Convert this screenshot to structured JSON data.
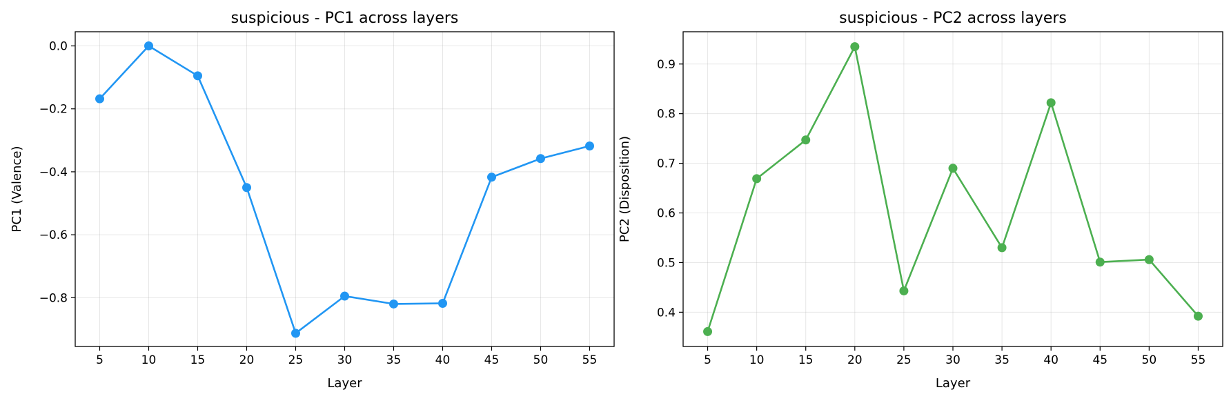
{
  "chart_data": [
    {
      "type": "line",
      "title": "suspicious - PC1 across layers",
      "xlabel": "Layer",
      "ylabel": "PC1 (Valence)",
      "x": [
        5,
        10,
        15,
        20,
        25,
        30,
        35,
        40,
        45,
        50,
        55
      ],
      "x_ticks": [
        5,
        10,
        15,
        20,
        25,
        30,
        35,
        40,
        45,
        50,
        55
      ],
      "x_tick_labels": [
        "5",
        "10",
        "15",
        "20",
        "25",
        "30",
        "35",
        "40",
        "45",
        "50",
        "55"
      ],
      "xlim": [
        2.5,
        57.5
      ],
      "ylim": [
        -0.955,
        0.045
      ],
      "y_ticks": [
        0.0,
        -0.2,
        -0.4,
        -0.6,
        -0.8
      ],
      "y_tick_labels": [
        "0.0",
        "−0.2",
        "−0.4",
        "−0.6",
        "−0.8"
      ],
      "grid": true,
      "series": [
        {
          "color": "#2196F3",
          "values": [
            -0.168,
            0.0,
            -0.095,
            -0.45,
            -0.913,
            -0.795,
            -0.82,
            -0.818,
            -0.417,
            -0.358,
            -0.318
          ]
        }
      ]
    },
    {
      "type": "line",
      "title": "suspicious - PC2 across layers",
      "xlabel": "Layer",
      "ylabel": "PC2 (Disposition)",
      "x": [
        5,
        10,
        15,
        20,
        25,
        30,
        35,
        40,
        45,
        50,
        55
      ],
      "x_ticks": [
        5,
        10,
        15,
        20,
        25,
        30,
        35,
        40,
        45,
        50,
        55
      ],
      "x_tick_labels": [
        "5",
        "10",
        "15",
        "20",
        "25",
        "30",
        "35",
        "40",
        "45",
        "50",
        "55"
      ],
      "xlim": [
        2.5,
        57.5
      ],
      "ylim": [
        0.331,
        0.965
      ],
      "y_ticks": [
        0.4,
        0.5,
        0.6,
        0.7,
        0.8,
        0.9
      ],
      "y_tick_labels": [
        "0.4",
        "0.5",
        "0.6",
        "0.7",
        "0.8",
        "0.9"
      ],
      "grid": true,
      "series": [
        {
          "color": "#4CAF50",
          "values": [
            0.361,
            0.669,
            0.747,
            0.935,
            0.443,
            0.69,
            0.53,
            0.822,
            0.501,
            0.506,
            0.392
          ]
        }
      ]
    }
  ]
}
